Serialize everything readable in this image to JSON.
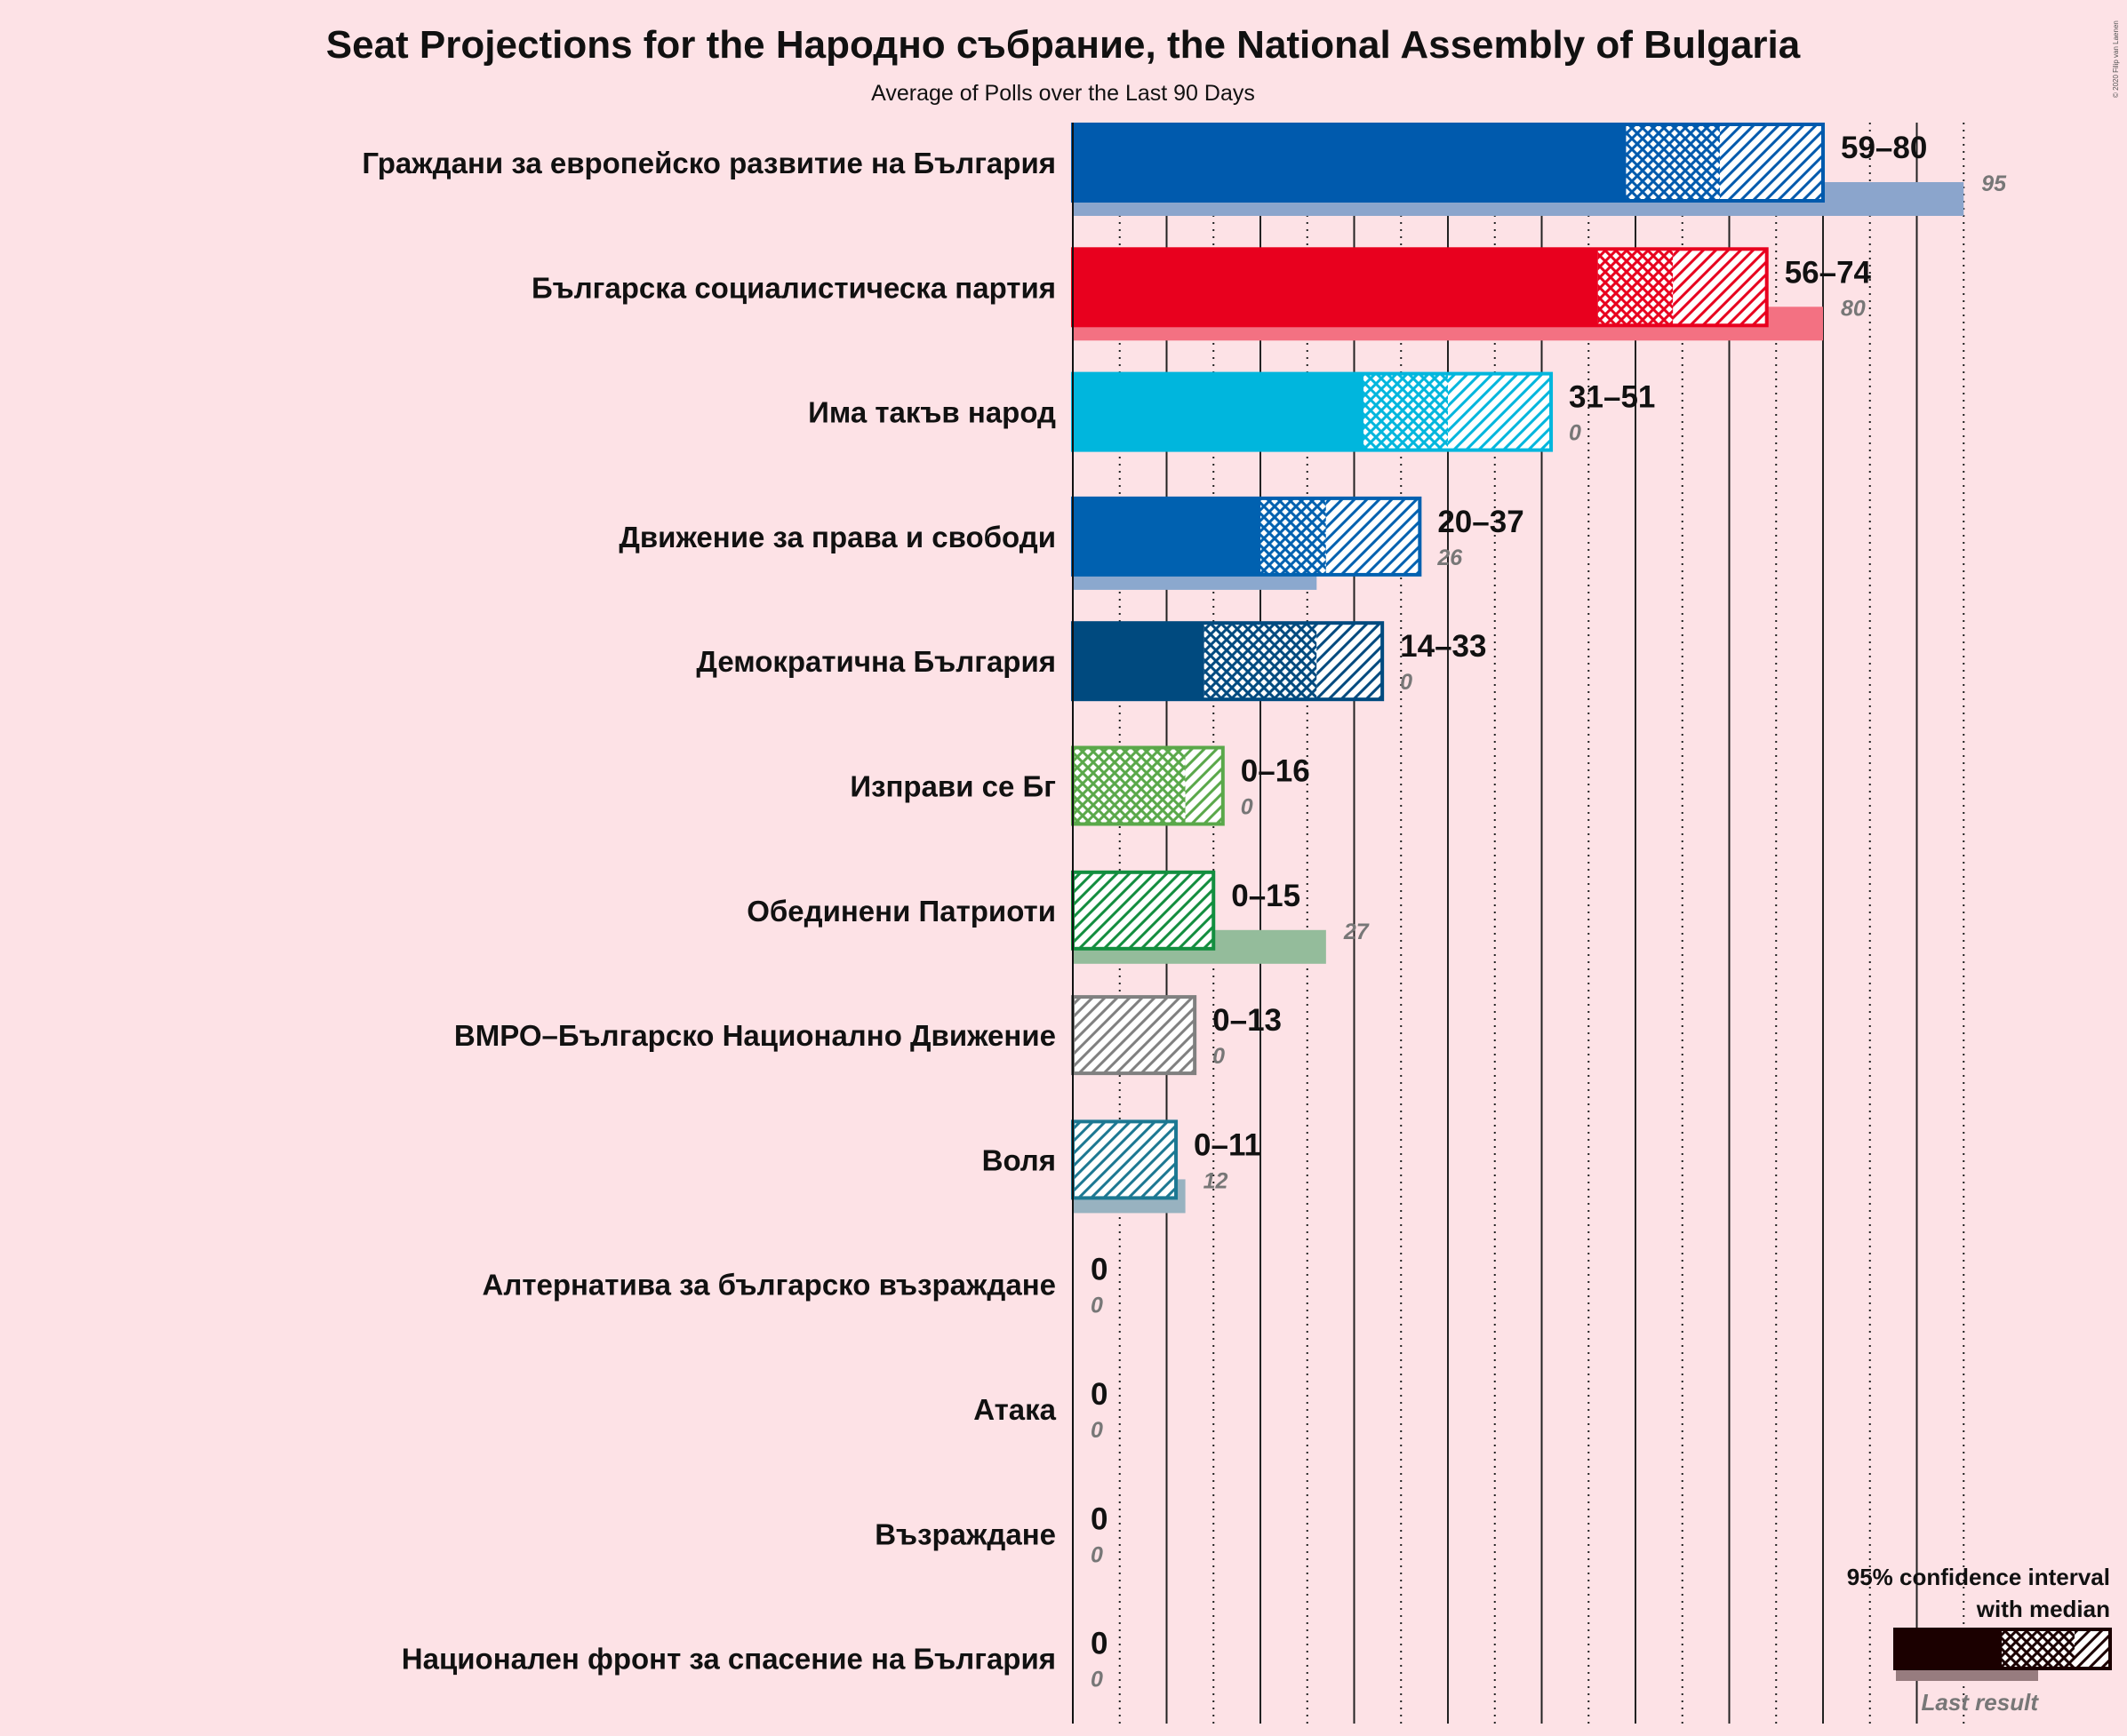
{
  "chart_data": {
    "type": "bar",
    "title": "Seat Projections for the Народно събрание, the National Assembly of Bulgaria",
    "subtitle": "Average of Polls over the Last 90 Days",
    "copyright": "© 2020 Filip van Laenen",
    "xlim": [
      0,
      95
    ],
    "gridlines_solid": [
      10,
      20,
      30,
      40,
      50,
      60,
      70,
      80,
      90
    ],
    "gridlines_dotted": [
      5,
      15,
      25,
      35,
      45,
      55,
      65,
      75,
      85,
      95
    ],
    "series": [
      {
        "name": "Граждани за европейско развитие на България",
        "color": "#005aad",
        "low": 59,
        "median": 69,
        "high": 80,
        "last": 95,
        "range_label": "59–80",
        "last_label": "95"
      },
      {
        "name": "Българска социалистическа партия",
        "color": "#e8001e",
        "low": 56,
        "median": 64,
        "high": 74,
        "last": 80,
        "range_label": "56–74",
        "last_label": "80"
      },
      {
        "name": "Има такъв народ",
        "color": "#00b6dd",
        "low": 31,
        "median": 40,
        "high": 51,
        "last": 0,
        "range_label": "31–51",
        "last_label": "0"
      },
      {
        "name": "Движение за права и свободи",
        "color": "#0061b0",
        "low": 20,
        "median": 27,
        "high": 37,
        "last": 26,
        "range_label": "20–37",
        "last_label": "26"
      },
      {
        "name": "Демократична България",
        "color": "#004a7f",
        "low": 14,
        "median": 26,
        "high": 33,
        "last": 0,
        "range_label": "14–33",
        "last_label": "0"
      },
      {
        "name": "Изправи се Бг",
        "color": "#5aa84a",
        "low": 0,
        "median": 12,
        "high": 16,
        "last": 0,
        "range_label": "0–16",
        "last_label": "0"
      },
      {
        "name": "Обединени Патриоти",
        "color": "#138e3f",
        "low": 0,
        "median": 0,
        "high": 15,
        "last": 27,
        "range_label": "0–15",
        "last_label": "27"
      },
      {
        "name": "ВМРО–Българско Национално Движение",
        "color": "#808080",
        "low": 0,
        "median": 0,
        "high": 13,
        "last": 0,
        "range_label": "0–13",
        "last_label": "0"
      },
      {
        "name": "Воля",
        "color": "#1c7892",
        "low": 0,
        "median": 0,
        "high": 11,
        "last": 12,
        "range_label": "0–11",
        "last_label": "12"
      },
      {
        "name": "Алтернатива за българско възраждане",
        "color": "#444444",
        "low": 0,
        "median": 0,
        "high": 0,
        "last": 0,
        "range_label": "0",
        "last_label": "0"
      },
      {
        "name": "Атака",
        "color": "#444444",
        "low": 0,
        "median": 0,
        "high": 0,
        "last": 0,
        "range_label": "0",
        "last_label": "0"
      },
      {
        "name": "Възраждане",
        "color": "#444444",
        "low": 0,
        "median": 0,
        "high": 0,
        "last": 0,
        "range_label": "0",
        "last_label": "0"
      },
      {
        "name": "Национален фронт за спасение на България",
        "color": "#444444",
        "low": 0,
        "median": 0,
        "high": 0,
        "last": 0,
        "range_label": "0",
        "last_label": "0"
      }
    ],
    "legend": {
      "line1": "95% confidence interval",
      "line2": "with median",
      "last": "Last result",
      "color": "#1b0000",
      "placement": "bottom-right"
    }
  }
}
